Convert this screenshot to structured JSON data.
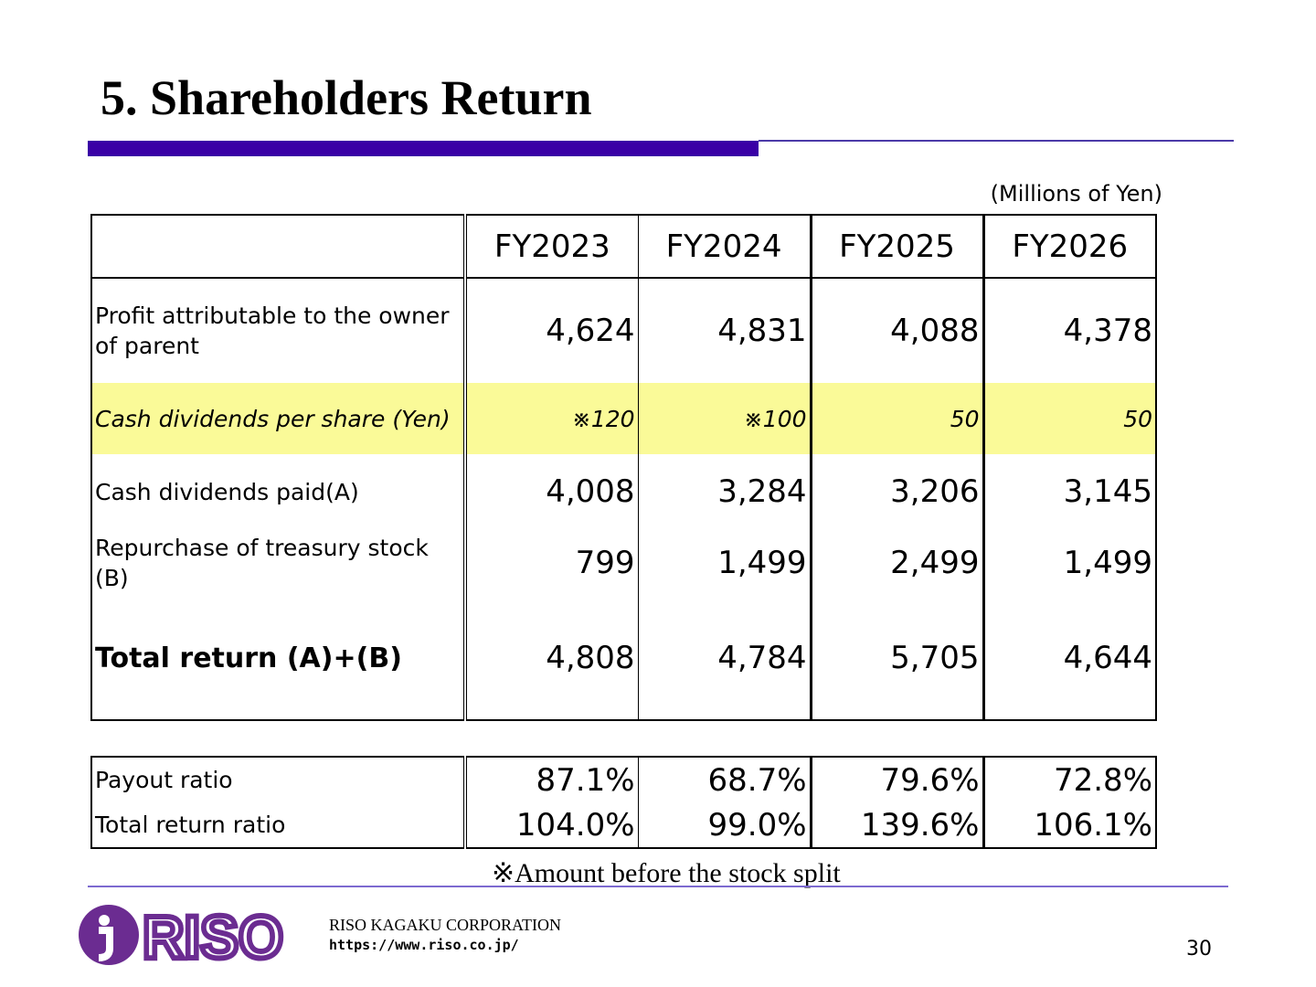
{
  "title": "5. Shareholders Return",
  "units": "(Millions of Yen)",
  "columns": [
    "FY2023",
    "FY2024",
    "FY2025",
    "FY2026"
  ],
  "rows": [
    {
      "label": "Profit attributable to the owner of  parent",
      "values": [
        "4,624",
        "4,831",
        "4,088",
        "4,378"
      ]
    },
    {
      "label": "Cash dividends per share (Yen)",
      "values": [
        "※120",
        "※100",
        "50",
        "50"
      ]
    },
    {
      "label": "Cash dividends paid(A)",
      "values": [
        "4,008",
        "3,284",
        "3,206",
        "3,145"
      ]
    },
    {
      "label": "Repurchase of treasury stock (B)",
      "values": [
        "799",
        "1,499",
        "2,499",
        "1,499"
      ]
    },
    {
      "label": "Total return (A)+(B)",
      "values": [
        "4,808",
        "4,784",
        "5,705",
        "4,644"
      ]
    }
  ],
  "ratios": [
    {
      "label": "Payout ratio",
      "values": [
        "87.1%",
        "68.7%",
        "79.6%",
        "72.8%"
      ]
    },
    {
      "label": "Total return ratio",
      "values": [
        "104.0%",
        "99.0%",
        "139.6%",
        "106.1%"
      ]
    }
  ],
  "highlight_color": "#fafa98",
  "accent_color": "#3a00a6",
  "note": "※Amount before the stock split",
  "footer": {
    "logo_text": "RISO",
    "logo_color": "#6b2c91",
    "company": "RISO KAGAKU CORPORATION",
    "url": "https://www.riso.co.jp/",
    "page": "30"
  }
}
